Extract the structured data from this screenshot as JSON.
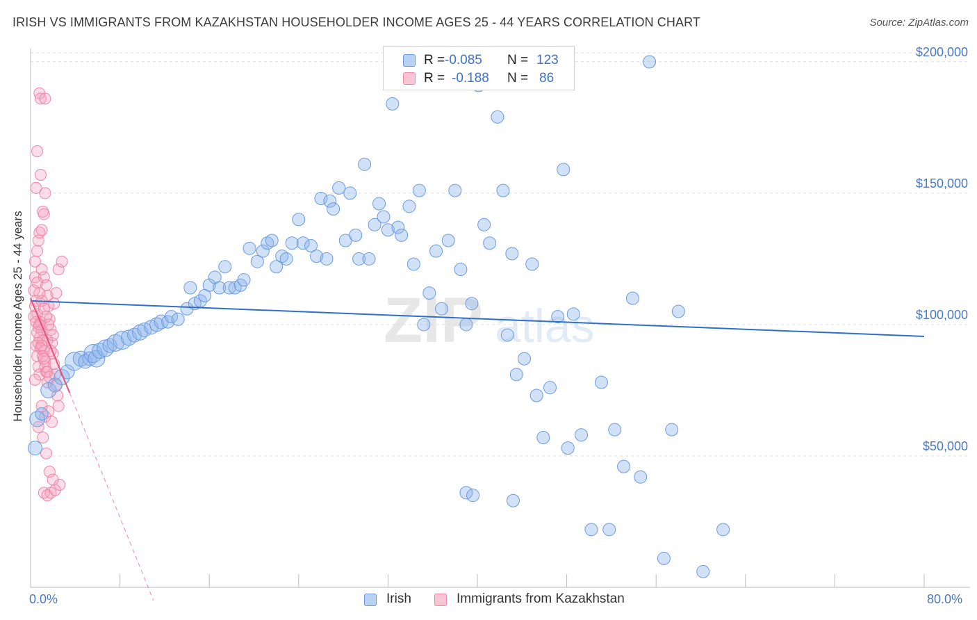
{
  "header": {
    "title": "IRISH VS IMMIGRANTS FROM KAZAKHSTAN HOUSEHOLDER INCOME AGES 25 - 44 YEARS CORRELATION CHART",
    "source": "Source: ZipAtlas.com"
  },
  "watermark": {
    "zip": "ZIP",
    "atlas": "atlas"
  },
  "legend_top": {
    "rows": [
      {
        "r_label": "R =",
        "r_value": "-0.085",
        "n_label": "N =",
        "n_value": "123"
      },
      {
        "r_label": "R =",
        "r_value": "-0.188",
        "n_label": "N =",
        "n_value": "86"
      }
    ]
  },
  "legend_bottom": {
    "irish": "Irish",
    "kazakhstan": "Immigrants from Kazakhstan"
  },
  "chart_data": {
    "type": "scatter",
    "title": "IRISH VS IMMIGRANTS FROM KAZAKHSTAN HOUSEHOLDER INCOME AGES 25 - 44 YEARS CORRELATION CHART",
    "xlabel": "",
    "ylabel": "Householder Income Ages 25 - 44 years",
    "xlim": [
      0,
      80
    ],
    "ylim": [
      0,
      205000
    ],
    "x_tick_labels": [
      "0.0%",
      "80.0%"
    ],
    "y_ticks": [
      50000,
      100000,
      150000,
      200000
    ],
    "y_tick_labels": [
      "$50,000",
      "$100,000",
      "$150,000",
      "$200,000"
    ],
    "grid": "horizontal dashed",
    "colors": {
      "irish": "#6a9be0",
      "irish_line": "#2f6fcc",
      "kazakhstan": "#ef86a6",
      "kazakhstan_line": "#e8507a"
    },
    "series": [
      {
        "name": "Irish",
        "trend": {
          "x": [
            0,
            80
          ],
          "y": [
            109000,
            95500
          ]
        },
        "points": [
          [
            0.4,
            53000,
            10
          ],
          [
            0.6,
            64000,
            11
          ],
          [
            1.0,
            66000,
            9
          ],
          [
            1.6,
            75000,
            11
          ],
          [
            2.2,
            77000,
            10
          ],
          [
            2.8,
            80000,
            11
          ],
          [
            3.3,
            82000,
            10
          ],
          [
            3.9,
            86000,
            13
          ],
          [
            4.5,
            87000,
            11
          ],
          [
            4.9,
            86000,
            10
          ],
          [
            5.3,
            87000,
            10
          ],
          [
            5.6,
            89000,
            13
          ],
          [
            5.9,
            87000,
            12
          ],
          [
            6.2,
            90000,
            11
          ],
          [
            6.7,
            91000,
            12
          ],
          [
            7.1,
            92000,
            10
          ],
          [
            7.6,
            93000,
            12
          ],
          [
            8.2,
            94000,
            13
          ],
          [
            8.8,
            95000,
            11
          ],
          [
            9.3,
            96000,
            10
          ],
          [
            9.8,
            97000,
            11
          ],
          [
            10.2,
            98000,
            10
          ],
          [
            10.8,
            99000,
            10
          ],
          [
            11.3,
            100000,
            10
          ],
          [
            11.7,
            101000,
            10
          ],
          [
            12.3,
            101000,
            9
          ],
          [
            12.6,
            103000,
            9
          ],
          [
            13.2,
            102000,
            9
          ],
          [
            14.0,
            106000,
            9
          ],
          [
            14.3,
            114000,
            9
          ],
          [
            14.7,
            108000,
            9
          ],
          [
            15.2,
            109000,
            9
          ],
          [
            15.6,
            111000,
            9
          ],
          [
            16.0,
            115000,
            9
          ],
          [
            16.5,
            118000,
            9
          ],
          [
            16.9,
            114000,
            9
          ],
          [
            17.4,
            122000,
            9
          ],
          [
            17.8,
            114000,
            9
          ],
          [
            18.3,
            114000,
            9
          ],
          [
            18.8,
            115000,
            9
          ],
          [
            19.1,
            117000,
            9
          ],
          [
            19.6,
            129000,
            9
          ],
          [
            20.3,
            124000,
            9
          ],
          [
            20.8,
            128000,
            9
          ],
          [
            21.2,
            131000,
            9
          ],
          [
            21.6,
            132000,
            9
          ],
          [
            22.0,
            122000,
            9
          ],
          [
            22.5,
            126000,
            9
          ],
          [
            22.9,
            125000,
            9
          ],
          [
            23.4,
            131000,
            9
          ],
          [
            24.0,
            140000,
            9
          ],
          [
            24.4,
            131000,
            9
          ],
          [
            25.1,
            130000,
            9
          ],
          [
            25.6,
            126000,
            9
          ],
          [
            26.0,
            148000,
            9
          ],
          [
            26.5,
            125000,
            9
          ],
          [
            26.8,
            147000,
            9
          ],
          [
            27.1,
            144000,
            9
          ],
          [
            27.6,
            152000,
            9
          ],
          [
            28.2,
            132000,
            9
          ],
          [
            28.6,
            150000,
            9
          ],
          [
            29.1,
            134000,
            9
          ],
          [
            29.4,
            125000,
            9
          ],
          [
            29.9,
            161000,
            9
          ],
          [
            30.3,
            125000,
            9
          ],
          [
            30.8,
            138000,
            9
          ],
          [
            31.2,
            146000,
            9
          ],
          [
            31.6,
            141000,
            9
          ],
          [
            32.0,
            136000,
            9
          ],
          [
            32.4,
            184000,
            9
          ],
          [
            32.9,
            137000,
            9
          ],
          [
            33.2,
            134000,
            9
          ],
          [
            33.9,
            145000,
            9
          ],
          [
            34.3,
            123000,
            9
          ],
          [
            34.8,
            151000,
            9
          ],
          [
            35.2,
            100000,
            9
          ],
          [
            35.7,
            112000,
            9
          ],
          [
            36.3,
            128000,
            9
          ],
          [
            36.8,
            106000,
            9
          ],
          [
            37.4,
            132000,
            9
          ],
          [
            38.0,
            151000,
            9
          ],
          [
            38.5,
            121000,
            9
          ],
          [
            39.0,
            100000,
            9
          ],
          [
            39.5,
            108000,
            9
          ],
          [
            40.1,
            191000,
            9
          ],
          [
            40.6,
            138000,
            9
          ],
          [
            41.1,
            131000,
            9
          ],
          [
            41.8,
            179000,
            9
          ],
          [
            42.3,
            151000,
            9
          ],
          [
            42.7,
            96000,
            9
          ],
          [
            43.1,
            127000,
            9
          ],
          [
            43.5,
            81000,
            9
          ],
          [
            44.2,
            87000,
            9
          ],
          [
            44.9,
            123000,
            9
          ],
          [
            45.3,
            73000,
            9
          ],
          [
            45.9,
            57000,
            9
          ],
          [
            46.5,
            76000,
            9
          ],
          [
            47.2,
            103000,
            9
          ],
          [
            47.7,
            159000,
            9
          ],
          [
            48.1,
            53000,
            9
          ],
          [
            48.6,
            104000,
            9
          ],
          [
            49.3,
            58000,
            9
          ],
          [
            50.2,
            22000,
            9
          ],
          [
            51.1,
            78000,
            9
          ],
          [
            51.8,
            22000,
            9
          ],
          [
            52.3,
            60000,
            9
          ],
          [
            53.1,
            46000,
            9
          ],
          [
            53.9,
            110000,
            9
          ],
          [
            54.6,
            42000,
            9
          ],
          [
            55.4,
            200000,
            9
          ],
          [
            56.7,
            11000,
            9
          ],
          [
            57.4,
            60000,
            9
          ],
          [
            60.2,
            6000,
            9
          ],
          [
            62.0,
            22000,
            9
          ],
          [
            39.0,
            36000,
            9
          ],
          [
            39.6,
            35000,
            9
          ],
          [
            43.2,
            33000,
            9
          ],
          [
            58.0,
            105000,
            9
          ]
        ]
      },
      {
        "name": "Immigrants from Kazakhstan",
        "trend": {
          "x": [
            0,
            3.5
          ],
          "y": [
            110000,
            74000
          ]
        },
        "trend_extension": {
          "x": [
            3.5,
            11
          ],
          "y": [
            74000,
            -5000
          ]
        },
        "points": [
          [
            0.3,
            113000
          ],
          [
            0.4,
            118000
          ],
          [
            0.5,
            109000
          ],
          [
            0.6,
            104000
          ],
          [
            0.7,
            99000
          ],
          [
            0.8,
            95000
          ],
          [
            0.5,
            92000
          ],
          [
            0.6,
            88000
          ],
          [
            0.7,
            84000
          ],
          [
            0.8,
            81000
          ],
          [
            0.4,
            79000
          ],
          [
            0.9,
            101000
          ],
          [
            1.0,
            98000
          ],
          [
            1.1,
            94000
          ],
          [
            1.2,
            90000
          ],
          [
            1.3,
            86000
          ],
          [
            1.4,
            82000
          ],
          [
            1.5,
            78000
          ],
          [
            0.6,
            128000
          ],
          [
            0.7,
            132000
          ],
          [
            0.8,
            135000
          ],
          [
            1.0,
            136000
          ],
          [
            1.2,
            142000
          ],
          [
            1.3,
            150000
          ],
          [
            0.9,
            157000
          ],
          [
            1.1,
            143000
          ],
          [
            0.5,
            152000
          ],
          [
            0.6,
            166000
          ],
          [
            0.8,
            188000
          ],
          [
            0.9,
            186000
          ],
          [
            1.3,
            186000
          ],
          [
            1.0,
            121000
          ],
          [
            1.2,
            118000
          ],
          [
            1.4,
            115000
          ],
          [
            1.5,
            111000
          ],
          [
            1.6,
            107000
          ],
          [
            1.7,
            102000
          ],
          [
            1.8,
            98000
          ],
          [
            1.9,
            93000
          ],
          [
            2.0,
            89000
          ],
          [
            2.1,
            85000
          ],
          [
            2.2,
            81000
          ],
          [
            2.3,
            77000
          ],
          [
            2.4,
            73000
          ],
          [
            2.5,
            69000
          ],
          [
            1.0,
            69000
          ],
          [
            1.3,
            65000
          ],
          [
            1.6,
            67000
          ],
          [
            1.9,
            63000
          ],
          [
            0.7,
            61000
          ],
          [
            1.1,
            57000
          ],
          [
            1.4,
            51000
          ],
          [
            1.7,
            44000
          ],
          [
            2.0,
            41000
          ],
          [
            1.2,
            36000
          ],
          [
            1.5,
            35000
          ],
          [
            1.8,
            36000
          ],
          [
            2.2,
            37000
          ],
          [
            2.6,
            39000
          ],
          [
            0.3,
            103000
          ],
          [
            0.4,
            107000
          ],
          [
            0.5,
            101000
          ],
          [
            0.6,
            97000
          ],
          [
            0.7,
            93000
          ],
          [
            0.9,
            91000
          ],
          [
            1.1,
            88000
          ],
          [
            1.3,
            84000
          ],
          [
            1.5,
            82000
          ],
          [
            1.7,
            80000
          ],
          [
            0.8,
            112000
          ],
          [
            1.0,
            109000
          ],
          [
            1.2,
            106000
          ],
          [
            1.4,
            103000
          ],
          [
            1.6,
            100000
          ],
          [
            2.1,
            108000
          ],
          [
            2.3,
            112000
          ],
          [
            2.5,
            121000
          ],
          [
            2.8,
            124000
          ],
          [
            1.5,
            94000
          ],
          [
            1.8,
            90000
          ],
          [
            2.0,
            96000
          ],
          [
            0.4,
            124000
          ],
          [
            0.6,
            116000
          ],
          [
            0.8,
            100000
          ],
          [
            1.0,
            92000
          ],
          [
            1.2,
            87000
          ]
        ]
      }
    ]
  }
}
